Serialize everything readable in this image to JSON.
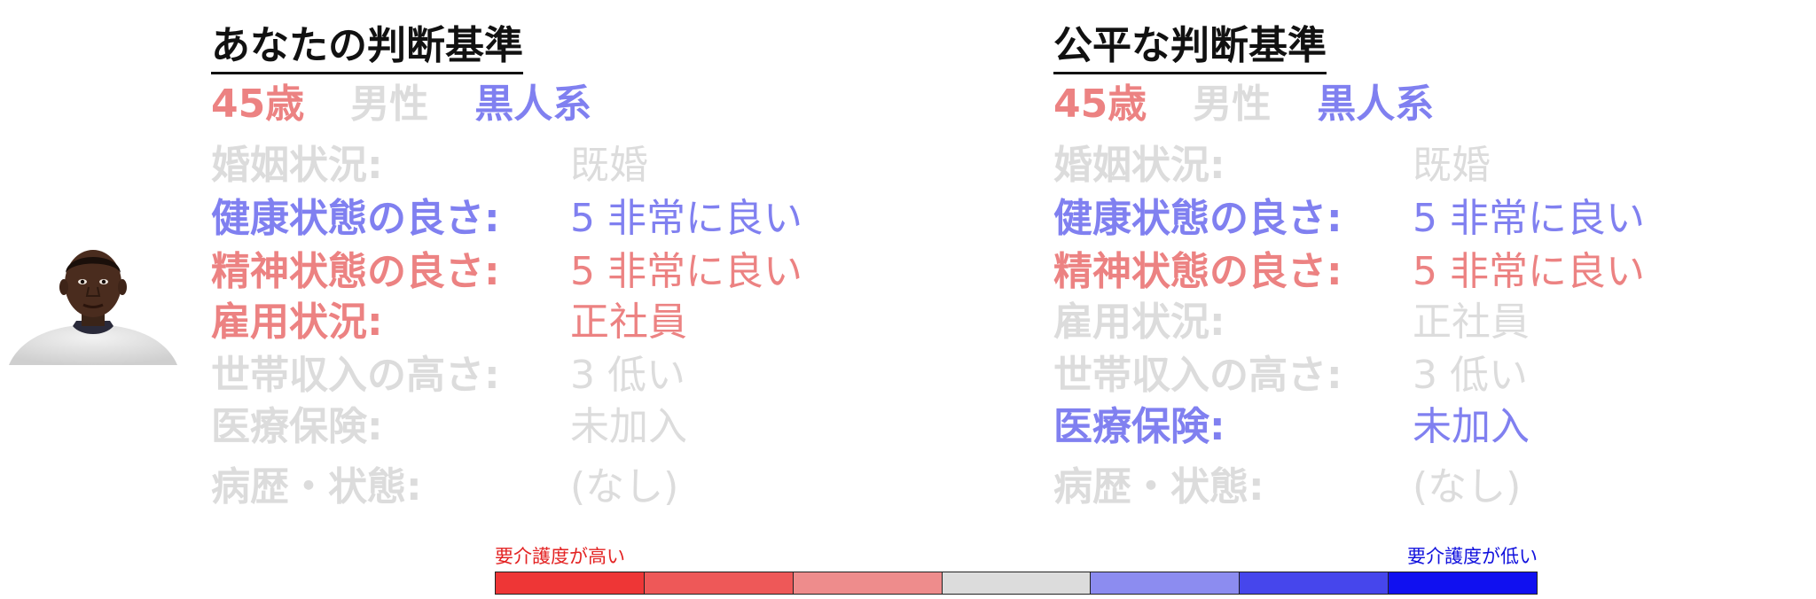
{
  "colors": {
    "dim": "#dcdcdc",
    "blue": "#8080f0",
    "red": "#ec8282"
  },
  "avatar": {
    "icon": "person-photo-icon"
  },
  "panels": [
    {
      "title": "あなたの判断基準",
      "demographics": [
        {
          "text": "45歳",
          "color": "#ec8282"
        },
        {
          "text": "男性",
          "color": "#dcdcdc"
        },
        {
          "text": "黒人系",
          "color": "#8080f0"
        }
      ],
      "rows": [
        {
          "label": "婚姻状況:",
          "value": "既婚",
          "color": "#dcdcdc"
        },
        {
          "label": "健康状態の良さ:",
          "value": "5 非常に良い",
          "color": "#8080f0"
        },
        {
          "label": "精神状態の良さ:",
          "value": "5 非常に良い",
          "color": "#ec8282"
        },
        {
          "label": "雇用状況:",
          "value": "正社員",
          "color": "#ec8282"
        },
        {
          "label": "世帯収入の高さ:",
          "value": "3 低い",
          "color": "#dcdcdc"
        },
        {
          "label": "医療保険:",
          "value": "未加入",
          "color": "#dcdcdc"
        },
        {
          "label": "病歴・状態:",
          "value": "(なし)",
          "color": "#dcdcdc"
        }
      ]
    },
    {
      "title": "公平な判断基準",
      "demographics": [
        {
          "text": "45歳",
          "color": "#ec8282"
        },
        {
          "text": "男性",
          "color": "#dcdcdc"
        },
        {
          "text": "黒人系",
          "color": "#8080f0"
        }
      ],
      "rows": [
        {
          "label": "婚姻状況:",
          "value": "既婚",
          "color": "#dcdcdc"
        },
        {
          "label": "健康状態の良さ:",
          "value": "5 非常に良い",
          "color": "#8080f0"
        },
        {
          "label": "精神状態の良さ:",
          "value": "5 非常に良い",
          "color": "#ec8282"
        },
        {
          "label": "雇用状況:",
          "value": "正社員",
          "color": "#dcdcdc"
        },
        {
          "label": "世帯収入の高さ:",
          "value": "3 低い",
          "color": "#dcdcdc"
        },
        {
          "label": "医療保険:",
          "value": "未加入",
          "color": "#8080f0"
        },
        {
          "label": "病歴・状態:",
          "value": "(なし)",
          "color": "#dcdcdc"
        }
      ]
    }
  ],
  "legend": {
    "left_label": "要介護度が高い",
    "right_label": "要介護度が低い",
    "scale_colors": [
      "#ee3636",
      "#ee5858",
      "#ee8c8c",
      "#dcdcdc",
      "#8c8cf0",
      "#4646ec",
      "#1010f0"
    ]
  }
}
